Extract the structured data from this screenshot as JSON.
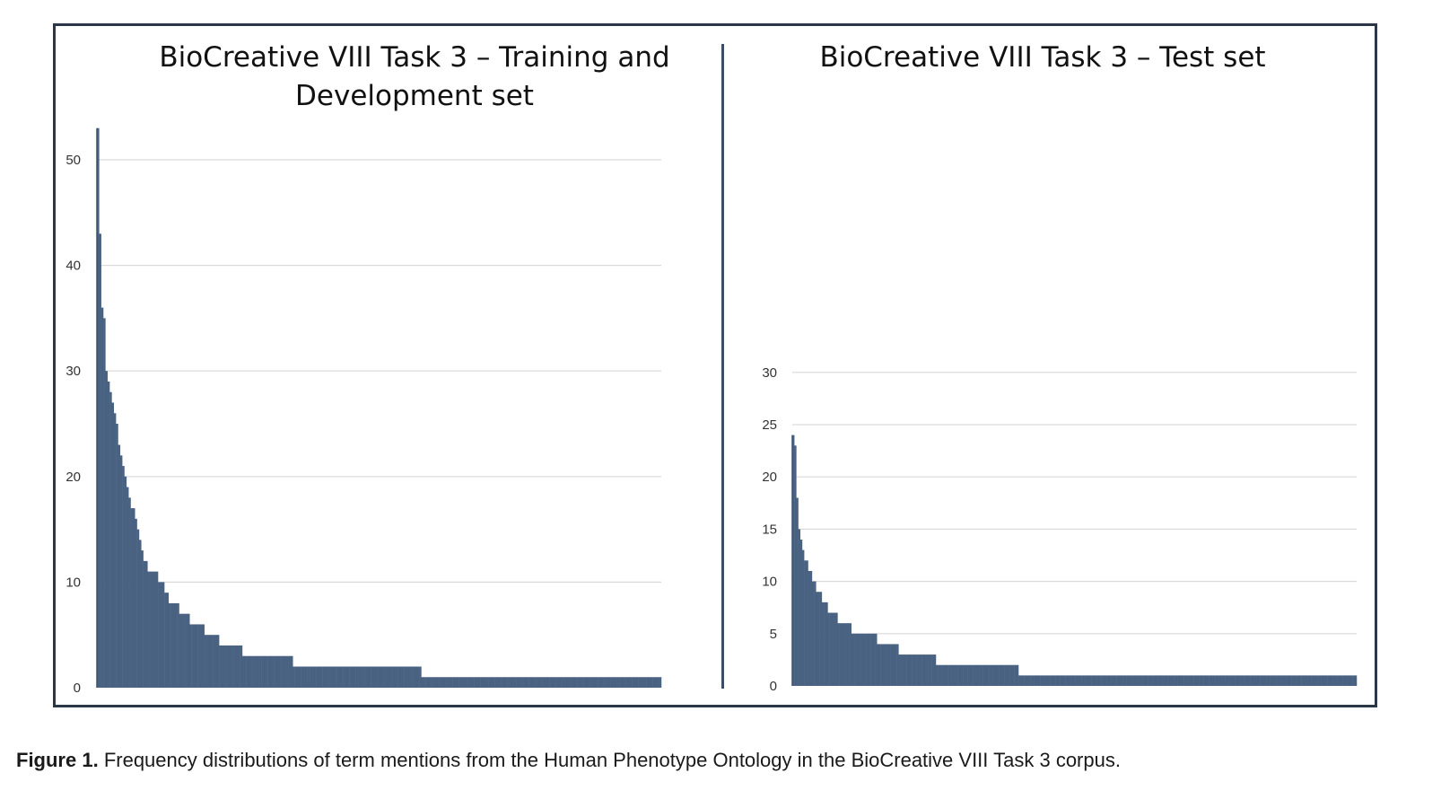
{
  "caption": {
    "label": "Figure 1.",
    "text": "Frequency distributions of term mentions from the Human Phenotype Ontology in the BioCreative VIII Task 3 corpus."
  },
  "colors": {
    "bar": "#4a6282",
    "bar_edge": "#3b5170",
    "grid": "#d9d9d9",
    "frame": "#2b3646"
  },
  "chart_data": [
    {
      "type": "bar",
      "title_line1": "BioCreative VIII Task 3 – Training and",
      "title_line2": "Development set",
      "xlabel": "",
      "ylabel": "",
      "ylim": [
        0,
        53
      ],
      "yticks": [
        0,
        10,
        20,
        30,
        40,
        50
      ],
      "grid": true,
      "sorted": "descending",
      "description": "Each bar is one HPO term; height = number of mentions",
      "values": [
        53,
        43,
        36,
        35,
        30,
        29,
        28,
        27,
        26,
        25,
        23,
        22,
        21,
        20,
        19,
        18,
        17,
        17,
        16,
        15,
        14,
        13,
        12,
        12,
        11,
        11,
        11,
        11,
        11,
        10,
        10,
        10,
        9,
        9,
        8,
        8,
        8,
        8,
        8,
        7,
        7,
        7,
        7,
        7,
        6,
        6,
        6,
        6,
        6,
        6,
        6,
        5,
        5,
        5,
        5,
        5,
        5,
        5,
        4,
        4,
        4,
        4,
        4,
        4,
        4,
        4,
        4,
        4,
        4,
        3,
        3,
        3,
        3,
        3,
        3,
        3,
        3,
        3,
        3,
        3,
        3,
        3,
        3,
        3,
        3,
        3,
        3,
        3,
        3,
        3,
        3,
        3,
        3,
        2,
        2,
        2,
        2,
        2,
        2,
        2,
        2,
        2,
        2,
        2,
        2,
        2,
        2,
        2,
        2,
        2,
        2,
        2,
        2,
        2,
        2,
        2,
        2,
        2,
        2,
        2,
        2,
        2,
        2,
        2,
        2,
        2,
        2,
        2,
        2,
        2,
        2,
        2,
        2,
        2,
        2,
        2,
        2,
        2,
        2,
        2,
        2,
        2,
        2,
        2,
        2,
        2,
        2,
        2,
        2,
        2,
        2,
        2,
        2,
        2,
        1,
        1,
        1,
        1,
        1,
        1,
        1,
        1,
        1,
        1,
        1,
        1,
        1,
        1,
        1,
        1,
        1,
        1,
        1,
        1,
        1,
        1,
        1,
        1,
        1,
        1,
        1,
        1,
        1,
        1,
        1,
        1,
        1,
        1,
        1,
        1,
        1,
        1,
        1,
        1,
        1,
        1,
        1,
        1,
        1,
        1,
        1,
        1,
        1,
        1,
        1,
        1,
        1,
        1,
        1,
        1,
        1,
        1,
        1,
        1,
        1,
        1,
        1,
        1,
        1,
        1,
        1,
        1,
        1,
        1,
        1,
        1,
        1,
        1,
        1,
        1,
        1,
        1,
        1,
        1,
        1,
        1,
        1,
        1,
        1,
        1,
        1,
        1,
        1,
        1,
        1,
        1,
        1,
        1,
        1,
        1,
        1,
        1,
        1,
        1,
        1,
        1,
        1,
        1,
        1,
        1,
        1,
        1,
        1,
        1,
        1,
        1,
        1,
        1
      ]
    },
    {
      "type": "bar",
      "title_line1": "BioCreative VIII Task 3 – Test set",
      "title_line2": "",
      "xlabel": "",
      "ylabel": "",
      "ylim": [
        0,
        30
      ],
      "yticks": [
        0,
        5,
        10,
        15,
        20,
        25,
        30
      ],
      "grid": true,
      "sorted": "descending",
      "description": "Each bar is one HPO term; height = number of mentions",
      "values": [
        24,
        23,
        18,
        15,
        14,
        13,
        12,
        12,
        11,
        11,
        10,
        10,
        9,
        9,
        9,
        8,
        8,
        8,
        7,
        7,
        7,
        7,
        7,
        6,
        6,
        6,
        6,
        6,
        6,
        6,
        5,
        5,
        5,
        5,
        5,
        5,
        5,
        5,
        5,
        5,
        5,
        5,
        5,
        4,
        4,
        4,
        4,
        4,
        4,
        4,
        4,
        4,
        4,
        4,
        3,
        3,
        3,
        3,
        3,
        3,
        3,
        3,
        3,
        3,
        3,
        3,
        3,
        3,
        3,
        3,
        3,
        3,
        3,
        2,
        2,
        2,
        2,
        2,
        2,
        2,
        2,
        2,
        2,
        2,
        2,
        2,
        2,
        2,
        2,
        2,
        2,
        2,
        2,
        2,
        2,
        2,
        2,
        2,
        2,
        2,
        2,
        2,
        2,
        2,
        2,
        2,
        2,
        2,
        2,
        2,
        2,
        2,
        2,
        2,
        2,
        1,
        1,
        1,
        1,
        1,
        1,
        1,
        1,
        1,
        1,
        1,
        1,
        1,
        1,
        1,
        1,
        1,
        1,
        1,
        1,
        1,
        1,
        1,
        1,
        1,
        1,
        1,
        1,
        1,
        1,
        1,
        1,
        1,
        1,
        1,
        1,
        1,
        1,
        1,
        1,
        1,
        1,
        1,
        1,
        1,
        1,
        1,
        1,
        1,
        1,
        1,
        1,
        1,
        1,
        1,
        1,
        1,
        1,
        1,
        1,
        1,
        1,
        1,
        1,
        1,
        1,
        1,
        1,
        1,
        1,
        1,
        1,
        1,
        1,
        1,
        1,
        1,
        1,
        1,
        1,
        1,
        1,
        1,
        1,
        1,
        1,
        1,
        1,
        1,
        1,
        1,
        1,
        1,
        1,
        1,
        1,
        1,
        1,
        1,
        1,
        1,
        1,
        1,
        1,
        1,
        1,
        1,
        1,
        1,
        1,
        1,
        1,
        1,
        1,
        1,
        1,
        1,
        1,
        1,
        1,
        1,
        1,
        1,
        1,
        1,
        1,
        1,
        1,
        1,
        1,
        1,
        1,
        1,
        1,
        1,
        1,
        1,
        1,
        1,
        1,
        1,
        1,
        1,
        1,
        1,
        1,
        1,
        1,
        1,
        1,
        1,
        1,
        1,
        1,
        1,
        1,
        1,
        1,
        1,
        1,
        1,
        1,
        1,
        1,
        1,
        1,
        1,
        1,
        1,
        1,
        1,
        1
      ]
    }
  ]
}
